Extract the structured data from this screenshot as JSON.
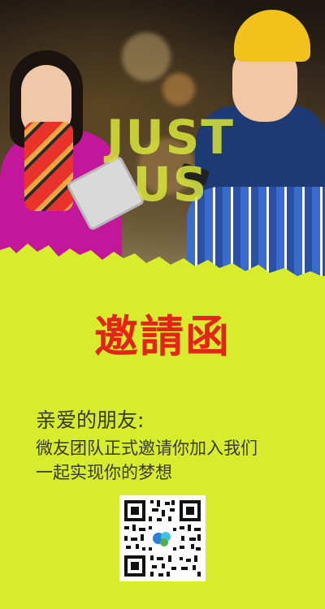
{
  "poster": {
    "headline_en": "JUST US",
    "title_cn": "邀請函",
    "greeting": "亲爱的朋友:",
    "line1": "微友团队正式邀请你加入我们",
    "line2": "一起实现你的梦想"
  },
  "colors": {
    "background": "#d6ec2c",
    "title": "#e32518",
    "text": "#3a3a2a",
    "headline": "#d8e63a"
  },
  "icons": [
    "qr-code-icon"
  ]
}
